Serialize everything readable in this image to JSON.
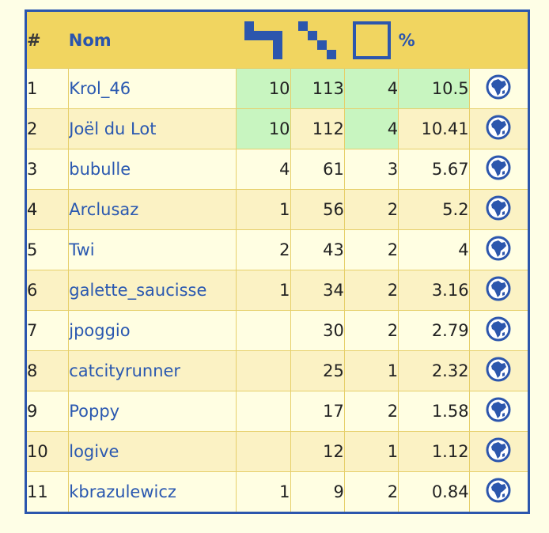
{
  "header": {
    "rank": "#",
    "name": "Nom",
    "col3_icon": "tetromino-shape-icon",
    "col4_icon": "staircase-shape-icon",
    "col5_icon": "empty-square-icon",
    "pct": "%"
  },
  "colors": {
    "border": "#2c56ad",
    "header_bg": "#f1d560",
    "highlight": "#c8f5c0",
    "link": "#2a58b0",
    "row_light": "#fffee2",
    "row_dark": "#fbf2c4"
  },
  "rows": [
    {
      "rank": "1",
      "name": "Krol_46",
      "c1": "10",
      "c2": "113",
      "c3": "4",
      "pct": "10.5",
      "hl": [
        true,
        true,
        true,
        true
      ]
    },
    {
      "rank": "2",
      "name": "Joël du Lot",
      "c1": "10",
      "c2": "112",
      "c3": "4",
      "pct": "10.41",
      "hl": [
        true,
        false,
        true,
        false
      ]
    },
    {
      "rank": "3",
      "name": "bubulle",
      "c1": "4",
      "c2": "61",
      "c3": "3",
      "pct": "5.67",
      "hl": [
        false,
        false,
        false,
        false
      ]
    },
    {
      "rank": "4",
      "name": "Arclusaz",
      "c1": "1",
      "c2": "56",
      "c3": "2",
      "pct": "5.2",
      "hl": [
        false,
        false,
        false,
        false
      ]
    },
    {
      "rank": "5",
      "name": "Twi",
      "c1": "2",
      "c2": "43",
      "c3": "2",
      "pct": "4",
      "hl": [
        false,
        false,
        false,
        false
      ]
    },
    {
      "rank": "6",
      "name": "galette_saucisse",
      "c1": "1",
      "c2": "34",
      "c3": "2",
      "pct": "3.16",
      "hl": [
        false,
        false,
        false,
        false
      ]
    },
    {
      "rank": "7",
      "name": "jpoggio",
      "c1": "",
      "c2": "30",
      "c3": "2",
      "pct": "2.79",
      "hl": [
        false,
        false,
        false,
        false
      ]
    },
    {
      "rank": "8",
      "name": "catcityrunner",
      "c1": "",
      "c2": "25",
      "c3": "1",
      "pct": "2.32",
      "hl": [
        false,
        false,
        false,
        false
      ]
    },
    {
      "rank": "9",
      "name": "Poppy",
      "c1": "",
      "c2": "17",
      "c3": "2",
      "pct": "1.58",
      "hl": [
        false,
        false,
        false,
        false
      ]
    },
    {
      "rank": "10",
      "name": "logive",
      "c1": "",
      "c2": "12",
      "c3": "1",
      "pct": "1.12",
      "hl": [
        false,
        false,
        false,
        false
      ]
    },
    {
      "rank": "11",
      "name": "kbrazulewicz",
      "c1": "1",
      "c2": "9",
      "c3": "2",
      "pct": "0.84",
      "hl": [
        false,
        false,
        false,
        false
      ]
    }
  ]
}
